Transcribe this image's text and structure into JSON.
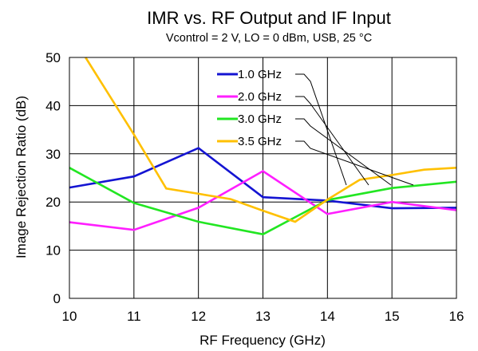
{
  "chart_data": {
    "type": "line",
    "title": "IMR vs. RF Output and IF Input",
    "subtitle": "Vcontrol = 2 V, LO = 0 dBm, USB, 25 °C",
    "xlabel": "RF Frequency (GHz)",
    "ylabel": "Image Rejection Ratio (dB)",
    "xlim": [
      10,
      16
    ],
    "ylim": [
      0,
      50
    ],
    "xticks": [
      "10",
      "11",
      "12",
      "13",
      "14",
      "15",
      "16"
    ],
    "yticks": [
      "0",
      "10",
      "20",
      "30",
      "40",
      "50"
    ],
    "grid": true,
    "legend_position": "top-center",
    "series": [
      {
        "name": "1.0 GHz",
        "color": "#1414d2",
        "x": [
          10,
          11,
          12,
          13,
          14,
          15,
          16
        ],
        "y": [
          23.0,
          25.3,
          31.2,
          21.0,
          20.3,
          18.7,
          18.8
        ]
      },
      {
        "name": "2.0 GHz",
        "color": "#ff1eff",
        "x": [
          10,
          11,
          12,
          13,
          14,
          15,
          16
        ],
        "y": [
          15.8,
          14.2,
          18.8,
          26.4,
          17.5,
          20.0,
          18.3
        ]
      },
      {
        "name": "3.0 GHz",
        "color": "#22e622",
        "x": [
          10,
          11,
          12,
          13,
          14,
          15,
          16
        ],
        "y": [
          27.1,
          19.8,
          15.9,
          13.3,
          20.4,
          22.9,
          24.2
        ]
      },
      {
        "name": "3.5 GHz",
        "color": "#ffc000",
        "x": [
          10.25,
          11,
          11.5,
          12,
          12.5,
          13,
          13.5,
          14,
          14.5,
          15,
          15.5,
          16
        ],
        "y": [
          50.0,
          34.0,
          22.8,
          21.7,
          20.6,
          18.2,
          15.9,
          20.5,
          24.6,
          25.6,
          26.7,
          27.1
        ]
      }
    ]
  }
}
